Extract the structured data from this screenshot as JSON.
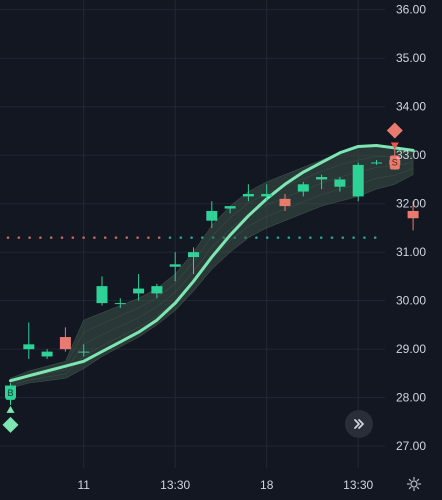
{
  "chart_data": {
    "type": "candlestick",
    "y_ticks": [
      "36.00",
      "35.00",
      "34.00",
      "33.00",
      "32.00",
      "31.00",
      "30.00",
      "29.00",
      "28.00",
      "27.00"
    ],
    "y_tick_values": [
      36,
      35,
      34,
      33,
      32,
      31,
      30,
      29,
      28,
      27
    ],
    "ylim": [
      26.55,
      36.2
    ],
    "x_ticks": [
      "11",
      "13:30",
      "18",
      "13:30"
    ],
    "x_tick_index": [
      4,
      9,
      14,
      19
    ],
    "candles": [
      {
        "o": 28.0,
        "h": 28.3,
        "l": 27.85,
        "c": 28.25
      },
      {
        "o": 29.0,
        "h": 29.55,
        "l": 28.8,
        "c": 29.1
      },
      {
        "o": 28.85,
        "h": 29.0,
        "l": 28.8,
        "c": 28.95
      },
      {
        "o": 29.25,
        "h": 29.45,
        "l": 28.95,
        "c": 29.0
      },
      {
        "o": 28.95,
        "h": 29.1,
        "l": 28.85,
        "c": 28.95
      },
      {
        "o": 29.95,
        "h": 30.5,
        "l": 29.9,
        "c": 30.3
      },
      {
        "o": 29.95,
        "h": 30.05,
        "l": 29.85,
        "c": 29.95
      },
      {
        "o": 30.15,
        "h": 30.55,
        "l": 30.0,
        "c": 30.25
      },
      {
        "o": 30.15,
        "h": 30.35,
        "l": 30.05,
        "c": 30.3
      },
      {
        "o": 30.7,
        "h": 31.0,
        "l": 30.4,
        "c": 30.75
      },
      {
        "o": 30.9,
        "h": 31.1,
        "l": 30.55,
        "c": 31.0
      },
      {
        "o": 31.65,
        "h": 32.05,
        "l": 31.5,
        "c": 31.85
      },
      {
        "o": 31.9,
        "h": 31.95,
        "l": 31.8,
        "c": 31.95
      },
      {
        "o": 32.15,
        "h": 32.4,
        "l": 32.05,
        "c": 32.2
      },
      {
        "o": 32.15,
        "h": 32.4,
        "l": 32.05,
        "c": 32.2
      },
      {
        "o": 32.1,
        "h": 32.2,
        "l": 31.85,
        "c": 31.95
      },
      {
        "o": 32.25,
        "h": 32.45,
        "l": 32.15,
        "c": 32.4
      },
      {
        "o": 32.5,
        "h": 32.6,
        "l": 32.3,
        "c": 32.55
      },
      {
        "o": 32.35,
        "h": 32.55,
        "l": 32.25,
        "c": 32.5
      },
      {
        "o": 32.15,
        "h": 32.85,
        "l": 32.05,
        "c": 32.8
      },
      {
        "o": 32.85,
        "h": 32.9,
        "l": 32.8,
        "c": 32.85
      },
      {
        "o": 32.9,
        "h": 33.25,
        "l": 32.7,
        "c": 32.8
      },
      {
        "o": 31.85,
        "h": 32.05,
        "l": 31.45,
        "c": 31.7
      }
    ],
    "trend_line": [
      28.35,
      28.45,
      28.55,
      28.65,
      28.75,
      28.95,
      29.15,
      29.35,
      29.6,
      29.95,
      30.4,
      30.9,
      31.35,
      31.75,
      32.1,
      32.4,
      32.65,
      32.85,
      33.05,
      33.18,
      33.2,
      33.15,
      33.1
    ],
    "ribbon_upper": [
      28.4,
      28.55,
      28.65,
      28.75,
      29.6,
      29.75,
      29.9,
      30.05,
      30.25,
      30.55,
      31.0,
      31.55,
      31.95,
      32.25,
      32.45,
      32.6,
      32.75,
      32.9,
      33.05,
      33.15,
      33.2,
      33.15,
      33.1
    ],
    "ribbon_lower": [
      28.2,
      28.3,
      28.35,
      28.4,
      28.6,
      28.85,
      29.05,
      29.25,
      29.5,
      29.8,
      30.2,
      30.65,
      31.0,
      31.3,
      31.5,
      31.65,
      31.8,
      31.95,
      32.05,
      32.15,
      32.3,
      32.4,
      32.6
    ],
    "level_line": 31.3,
    "colors": {
      "up": "#26a69a",
      "up_bright": "#2ed297",
      "down": "#ef5350",
      "down_soft": "#e97b6e",
      "trend": "#7ee6b3",
      "ribbon": "#3d5248",
      "level_left": "#c46a5c",
      "level_right": "#26a69a",
      "background": "#131722",
      "axis_text": "#d1d4dc"
    }
  },
  "signals": {
    "buy_label": "B",
    "sell_label": "S"
  },
  "controls": {
    "scroll_icon": "double-chevron-right-icon",
    "settings_icon": "gear-icon"
  }
}
